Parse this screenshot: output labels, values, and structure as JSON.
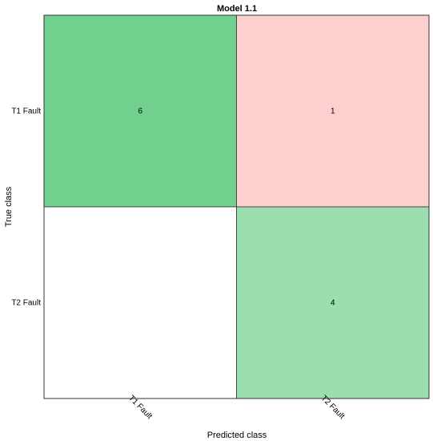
{
  "chart_data": {
    "type": "heatmap",
    "title": "Model 1.1",
    "xlabel": "Predicted class",
    "ylabel": "True class",
    "x_categories": [
      "T1 Fault",
      "T2 Fault"
    ],
    "y_categories": [
      "T1 Fault",
      "T2 Fault"
    ],
    "matrix": [
      [
        6,
        1
      ],
      [
        null,
        4
      ]
    ],
    "colors": {
      "correct_strong": "#72d08f",
      "correct_light": "#9bdfae",
      "incorrect": "#fdd0d0",
      "empty": "#ffffff",
      "border": "#333333"
    },
    "grid": false,
    "legend": "none"
  }
}
